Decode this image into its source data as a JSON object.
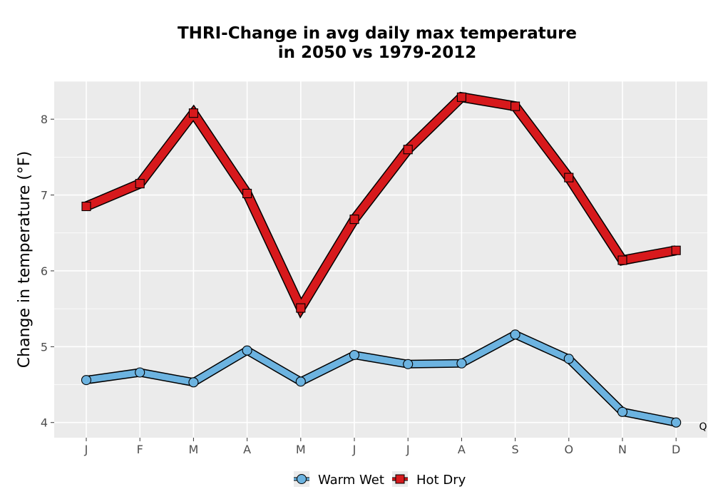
{
  "chart_data": {
    "type": "line",
    "title_line1": "THRI-Change in avg daily max temperature",
    "title_line2": "in 2050 vs 1979-2012",
    "xlabel": "",
    "ylabel": "Change in temperature (°F)",
    "categories": [
      "J",
      "F",
      "M",
      "A",
      "M",
      "J",
      "J",
      "A",
      "S",
      "O",
      "N",
      "D"
    ],
    "ylim": [
      3.8,
      8.5
    ],
    "yticks": [
      4,
      5,
      6,
      7,
      8
    ],
    "grid": true,
    "legend_position": "bottom",
    "series": [
      {
        "name": "Warm Wet",
        "marker": "circle",
        "color": "#6cb3e0",
        "values": [
          4.56,
          4.66,
          4.53,
          4.95,
          4.54,
          4.89,
          4.77,
          4.78,
          5.16,
          4.84,
          4.14,
          4.0
        ]
      },
      {
        "name": "Hot Dry",
        "marker": "square",
        "color": "#d7191c",
        "values": [
          6.85,
          7.15,
          8.08,
          7.02,
          5.51,
          6.68,
          7.6,
          8.29,
          8.17,
          7.23,
          6.14,
          6.27
        ]
      }
    ],
    "corner_mark": "Q"
  }
}
